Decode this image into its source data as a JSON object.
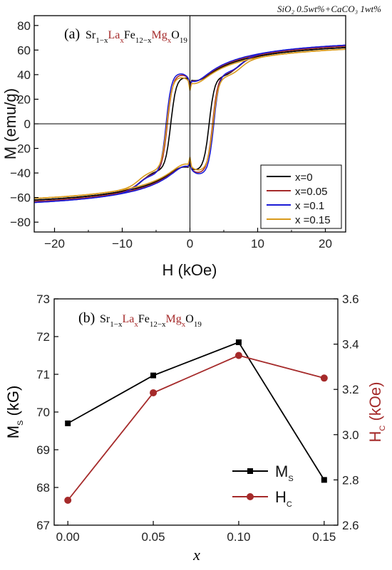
{
  "condition_note": "SiO₂ 0.5wt%+CaCO₃ 1wt%",
  "chart_data": [
    {
      "panel": "(a)",
      "type": "line",
      "formula": "Sr1−xLaxFe12−xMgxO19",
      "xlabel": "H (kOe)",
      "ylabel": "M (emu/g)",
      "xlim": [
        -23,
        23
      ],
      "ylim": [
        -88,
        88
      ],
      "xticks": [
        -20,
        -10,
        0,
        10,
        20
      ],
      "yticks": [
        -80,
        -60,
        -40,
        -20,
        0,
        20,
        40,
        60,
        80
      ],
      "zero_lines": true,
      "legend_position": "bottom-right",
      "series": [
        {
          "name": "x=0",
          "color": "#000000",
          "Ms": 69.7,
          "Hc": 2.7,
          "Mr": 35
        },
        {
          "name": "x=0.05",
          "color": "#a52a2a",
          "Ms": 71.0,
          "Hc": 3.18,
          "Mr": 37
        },
        {
          "name": "x =0.1",
          "color": "#1a1ad6",
          "Ms": 71.9,
          "Hc": 3.35,
          "Mr": 38
        },
        {
          "name": "x =0.15",
          "color": "#d99a1b",
          "Ms": 68.2,
          "Hc": 3.25,
          "Mr": 35
        }
      ]
    },
    {
      "panel": "(b)",
      "type": "line",
      "formula": "Sr1−xLaxFe12−xMgxO19",
      "xlabel": "x",
      "ylabel_left": "MS (kG)",
      "ylabel_right": "HC (kOe)",
      "x": [
        0.0,
        0.05,
        0.1,
        0.15
      ],
      "xticks": [
        "0.00",
        "0.05",
        "0.10",
        "0.15"
      ],
      "xlim": [
        -0.008,
        0.158
      ],
      "ylim_left": [
        67,
        73
      ],
      "ylim_right": [
        2.6,
        3.6
      ],
      "yticks_left": [
        67,
        68,
        69,
        70,
        71,
        72,
        73
      ],
      "yticks_right": [
        "2.6",
        "2.8",
        "3.0",
        "3.2",
        "3.4",
        "3.6"
      ],
      "legend_position": "bottom-right",
      "series": [
        {
          "name": "MS",
          "axis": "left",
          "color": "#000000",
          "marker": "square",
          "values": [
            69.7,
            70.97,
            71.85,
            68.2
          ]
        },
        {
          "name": "HC",
          "axis": "right",
          "color": "#a52a2a",
          "marker": "circle",
          "values": [
            2.71,
            3.185,
            3.35,
            3.25
          ]
        }
      ]
    }
  ]
}
